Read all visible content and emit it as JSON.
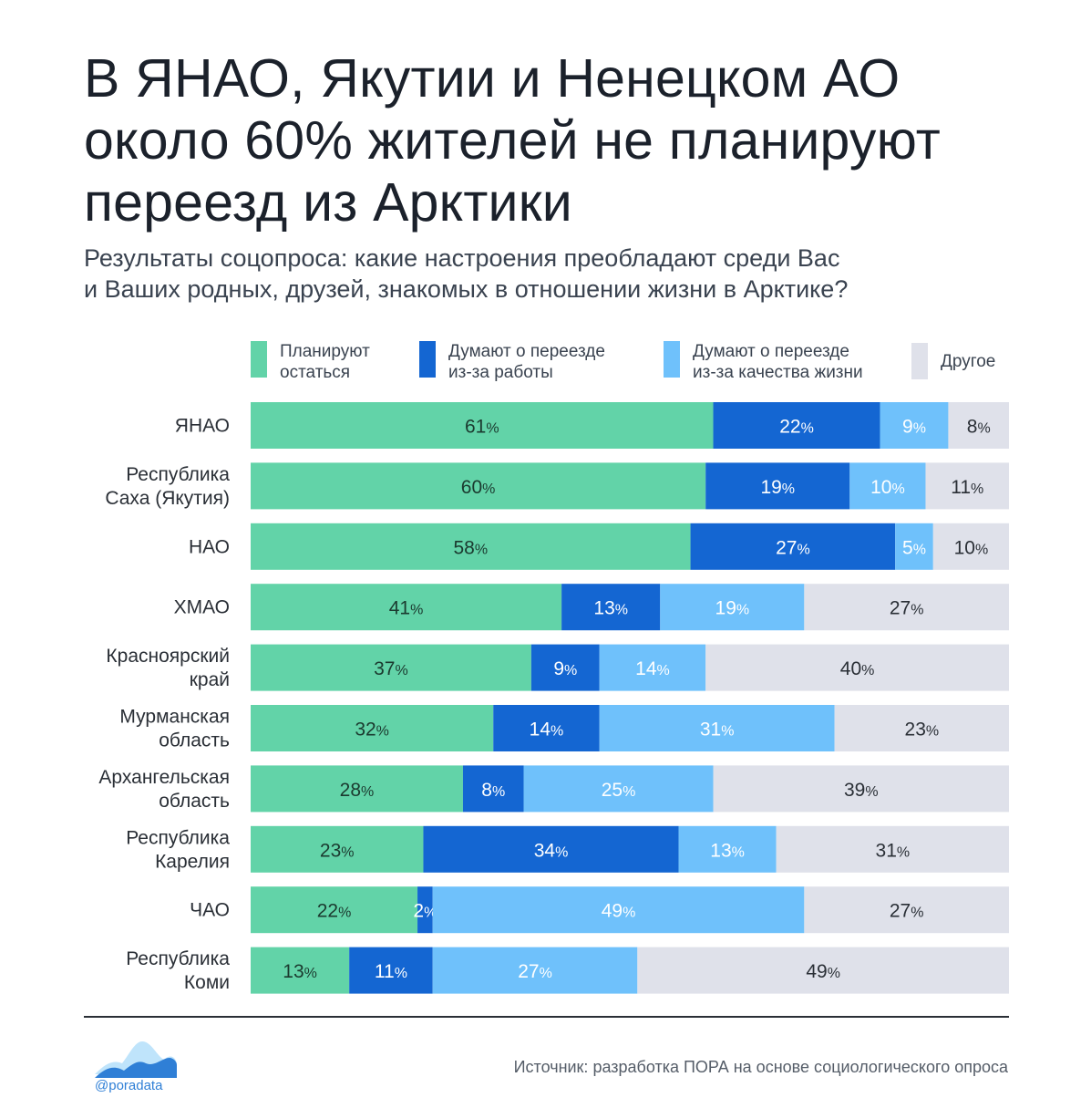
{
  "title_lines": [
    "В ЯНАО, Якутии и Ненецком АО",
    "около 60% жителей не планируют",
    "переезд из Арктики"
  ],
  "subtitle_lines": [
    "Результаты соцопроса: какие настроения преобладают среди Вас",
    "и Ваших родных, друзей, знакомых в отношении жизни в Арктике?"
  ],
  "legend": [
    {
      "lines": [
        "Планируют",
        "остаться"
      ],
      "color": "#62d3a8"
    },
    {
      "lines": [
        "Думают о переезде",
        "из-за работы"
      ],
      "color": "#1466d2"
    },
    {
      "lines": [
        "Думают о переезде",
        "из-за качества жизни"
      ],
      "color": "#6fc1fb"
    },
    {
      "lines": [
        "Другое"
      ],
      "color": "#dfe1ea"
    }
  ],
  "chart_data": {
    "type": "bar",
    "orientation": "horizontal",
    "stacked": true,
    "value_suffix": "%",
    "categories": [
      [
        "ЯНАО"
      ],
      [
        "Республика",
        "Саха (Якутия)"
      ],
      [
        "НАО"
      ],
      [
        "ХМАО"
      ],
      [
        "Красноярский",
        "край"
      ],
      [
        "Мурманская",
        "область"
      ],
      [
        "Архангельская",
        "область"
      ],
      [
        "Республика",
        "Карелия"
      ],
      [
        "ЧАО"
      ],
      [
        "Республика",
        "Коми"
      ]
    ],
    "series": [
      {
        "name": "Планируют остаться",
        "color": "#62d3a8",
        "values": [
          61,
          60,
          58,
          41,
          37,
          32,
          28,
          23,
          22,
          13
        ]
      },
      {
        "name": "Думают о переезде из-за работы",
        "color": "#1466d2",
        "values": [
          22,
          19,
          27,
          13,
          9,
          14,
          8,
          34,
          2,
          11
        ]
      },
      {
        "name": "Думают о переезде из-за качества жизни",
        "color": "#6fc1fb",
        "values": [
          9,
          10,
          5,
          19,
          14,
          31,
          25,
          13,
          49,
          27
        ]
      },
      {
        "name": "Другое",
        "color": "#dfe1ea",
        "values": [
          8,
          11,
          10,
          27,
          40,
          23,
          39,
          31,
          27,
          49
        ]
      }
    ]
  },
  "footer": {
    "logo_text": "@poradata",
    "source": "Источник: разработка ПОРА на основе социологического опроса"
  }
}
